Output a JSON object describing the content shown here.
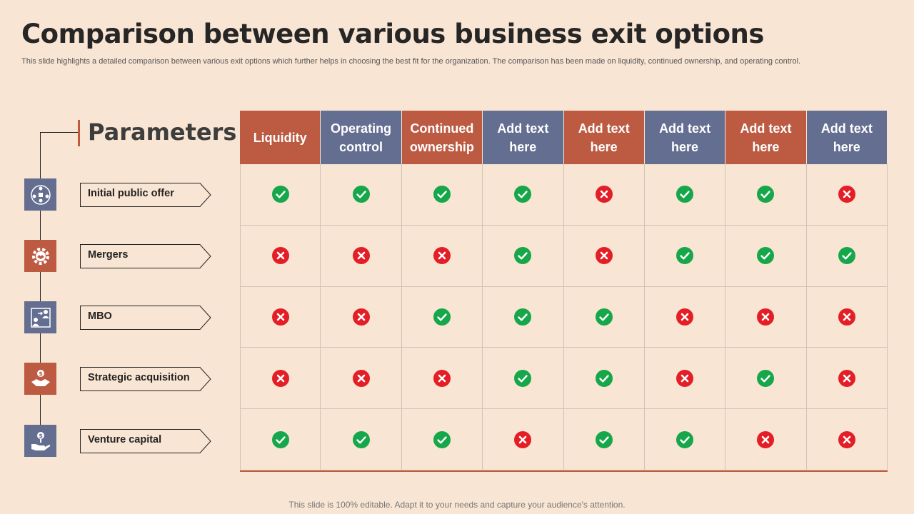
{
  "title": "Comparison between various business exit options",
  "subtitle": "This slide highlights a detailed comparison between various exit options which further helps in choosing the best fit for the organization. The comparison has been made on liquidity, continued ownership, and operating control.",
  "parameters_title": "Parameters",
  "columns": [
    {
      "label": "Liquidity",
      "color": "#bd5a42"
    },
    {
      "label": "Operating control",
      "color": "#646e90"
    },
    {
      "label": "Continued ownership",
      "color": "#bd5a42"
    },
    {
      "label": "Add text here",
      "color": "#646e90"
    },
    {
      "label": "Add text here",
      "color": "#bd5a42"
    },
    {
      "label": "Add text here",
      "color": "#646e90"
    },
    {
      "label": "Add text here",
      "color": "#bd5a42"
    },
    {
      "label": "Add text here",
      "color": "#646e90"
    }
  ],
  "rows": [
    {
      "label": "Initial public offer",
      "icon": "people-network-icon",
      "icon_bg": "#646e90",
      "values": [
        true,
        true,
        true,
        true,
        false,
        true,
        true,
        false
      ]
    },
    {
      "label": "Mergers",
      "icon": "gear-handshake-icon",
      "icon_bg": "#bd5a42",
      "values": [
        false,
        false,
        false,
        true,
        false,
        true,
        true,
        true
      ]
    },
    {
      "label": "MBO",
      "icon": "management-exchange-icon",
      "icon_bg": "#646e90",
      "values": [
        false,
        false,
        true,
        true,
        true,
        false,
        false,
        false
      ]
    },
    {
      "label": "Strategic acquisition",
      "icon": "dollar-handshake-icon",
      "icon_bg": "#bd5a42",
      "values": [
        false,
        false,
        false,
        true,
        true,
        false,
        true,
        false
      ]
    },
    {
      "label": "Venture capital",
      "icon": "hand-coin-icon",
      "icon_bg": "#646e90",
      "values": [
        true,
        true,
        true,
        false,
        true,
        true,
        false,
        false
      ]
    }
  ],
  "colors": {
    "check": "#16a74a",
    "cross": "#e41e26",
    "accent": "#bd5a42",
    "navy": "#646e90",
    "background": "#f9e5d3"
  },
  "footer": "This slide is 100% editable. Adapt it to your needs and capture your audience's attention."
}
